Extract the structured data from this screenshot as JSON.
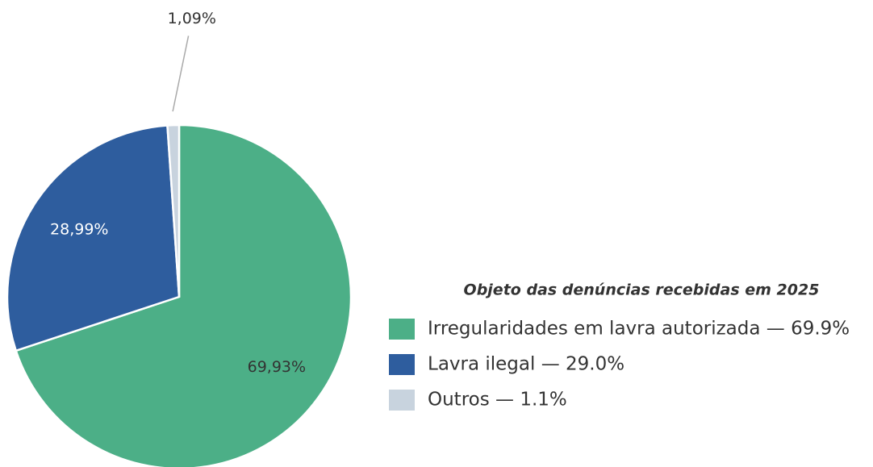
{
  "chart_data": {
    "type": "pie",
    "legend_title": "Objeto das denúncias recebidas em 2025",
    "categories": [
      "Irregularidades em lavra autorizada — 69.9%",
      "Lavra ilegal — 29.0%",
      "Outros — 1.1%"
    ],
    "values": [
      69.93,
      28.99,
      1.09
    ],
    "value_labels": [
      "69,93%",
      "28,99%",
      "1,09%"
    ],
    "colors": [
      "#4caf87",
      "#2e5d9e",
      "#c8d3de"
    ],
    "legend": "right"
  }
}
